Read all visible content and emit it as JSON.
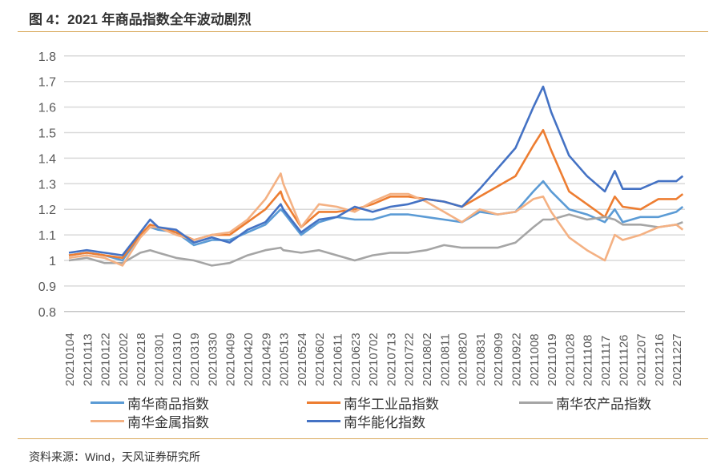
{
  "title": "图 4：2021 年商品指数全年波动剧烈",
  "source": "资料来源：Wind，天风证券研究所",
  "chart_data": {
    "type": "line",
    "title": "图 4：2021 年商品指数全年波动剧烈",
    "xlabel": "",
    "ylabel": "",
    "ylim": [
      0.8,
      1.8
    ],
    "yticks": [
      "0.8",
      "0.9",
      "1",
      "1.1",
      "1.2",
      "1.3",
      "1.4",
      "1.5",
      "1.6",
      "1.7",
      "1.8"
    ],
    "grid": true,
    "legend_position": "bottom",
    "categories": [
      "20210104",
      "20210113",
      "20210122",
      "20210202",
      "20210218",
      "20210301",
      "20210310",
      "20210319",
      "20210330",
      "20210409",
      "20210420",
      "20210429",
      "20210513",
      "20210524",
      "20210602",
      "20210611",
      "20210623",
      "20210702",
      "20210713",
      "20210722",
      "20210802",
      "20210811",
      "20210820",
      "20210831",
      "20210909",
      "20210922",
      "20211008",
      "20211019",
      "20211028",
      "20211108",
      "20211117",
      "20211126",
      "20211207",
      "20211216",
      "20211227"
    ],
    "x": [
      "20210104",
      "20210113",
      "20210122",
      "20210202",
      "20210218",
      "20210224",
      "20210301",
      "20210310",
      "20210319",
      "20210330",
      "20210409",
      "20210420",
      "20210429",
      "20210511",
      "20210513",
      "20210524",
      "20210602",
      "20210611",
      "20210623",
      "20210702",
      "20210713",
      "20210722",
      "20210802",
      "20210811",
      "20210820",
      "20210831",
      "20210909",
      "20210922",
      "20211008",
      "20211014",
      "20211019",
      "20211028",
      "20211108",
      "20211117",
      "20211122",
      "20211126",
      "20211207",
      "20211216",
      "20211227",
      "20211231"
    ],
    "series": [
      {
        "name": "南华商品指数",
        "color": "#5B9BD5",
        "values": [
          1.02,
          1.03,
          1.02,
          1.0,
          1.1,
          1.13,
          1.12,
          1.11,
          1.06,
          1.08,
          1.08,
          1.11,
          1.14,
          1.2,
          1.19,
          1.1,
          1.15,
          1.17,
          1.16,
          1.16,
          1.18,
          1.18,
          1.17,
          1.16,
          1.15,
          1.19,
          1.18,
          1.19,
          1.27,
          1.31,
          1.27,
          1.2,
          1.18,
          1.15,
          1.2,
          1.15,
          1.17,
          1.17,
          1.19,
          1.21
        ]
      },
      {
        "name": "南华工业品指数",
        "color": "#ED7D31",
        "values": [
          1.02,
          1.03,
          1.02,
          1.01,
          1.1,
          1.14,
          1.13,
          1.11,
          1.08,
          1.1,
          1.1,
          1.15,
          1.2,
          1.27,
          1.24,
          1.13,
          1.19,
          1.19,
          1.2,
          1.22,
          1.25,
          1.25,
          1.24,
          1.23,
          1.21,
          1.25,
          1.29,
          1.33,
          1.45,
          1.51,
          1.43,
          1.27,
          1.22,
          1.17,
          1.25,
          1.21,
          1.2,
          1.24,
          1.24,
          1.26
        ]
      },
      {
        "name": "南华农产品指数",
        "color": "#A5A5A5",
        "values": [
          1.0,
          1.01,
          0.99,
          0.99,
          1.03,
          1.04,
          1.03,
          1.01,
          1.0,
          0.98,
          0.99,
          1.02,
          1.04,
          1.05,
          1.04,
          1.03,
          1.04,
          1.02,
          1.0,
          1.02,
          1.03,
          1.03,
          1.04,
          1.06,
          1.05,
          1.05,
          1.05,
          1.07,
          1.13,
          1.16,
          1.16,
          1.18,
          1.16,
          1.17,
          1.16,
          1.14,
          1.14,
          1.13,
          1.14,
          1.15
        ]
      },
      {
        "name": "南华金属指数",
        "color": "#F4B183",
        "values": [
          1.01,
          1.02,
          1.01,
          0.98,
          1.09,
          1.13,
          1.13,
          1.1,
          1.08,
          1.1,
          1.11,
          1.16,
          1.24,
          1.34,
          1.3,
          1.13,
          1.22,
          1.21,
          1.19,
          1.23,
          1.26,
          1.26,
          1.23,
          1.19,
          1.15,
          1.2,
          1.18,
          1.19,
          1.24,
          1.25,
          1.19,
          1.09,
          1.04,
          1.0,
          1.1,
          1.08,
          1.1,
          1.13,
          1.14,
          1.12
        ]
      },
      {
        "name": "南华能化指数",
        "color": "#4472C4",
        "values": [
          1.03,
          1.04,
          1.03,
          1.02,
          1.11,
          1.16,
          1.13,
          1.12,
          1.07,
          1.09,
          1.07,
          1.12,
          1.15,
          1.22,
          1.2,
          1.11,
          1.16,
          1.17,
          1.21,
          1.19,
          1.21,
          1.22,
          1.24,
          1.23,
          1.21,
          1.28,
          1.36,
          1.44,
          1.6,
          1.68,
          1.58,
          1.41,
          1.33,
          1.27,
          1.35,
          1.28,
          1.28,
          1.31,
          1.31,
          1.33
        ]
      }
    ]
  }
}
